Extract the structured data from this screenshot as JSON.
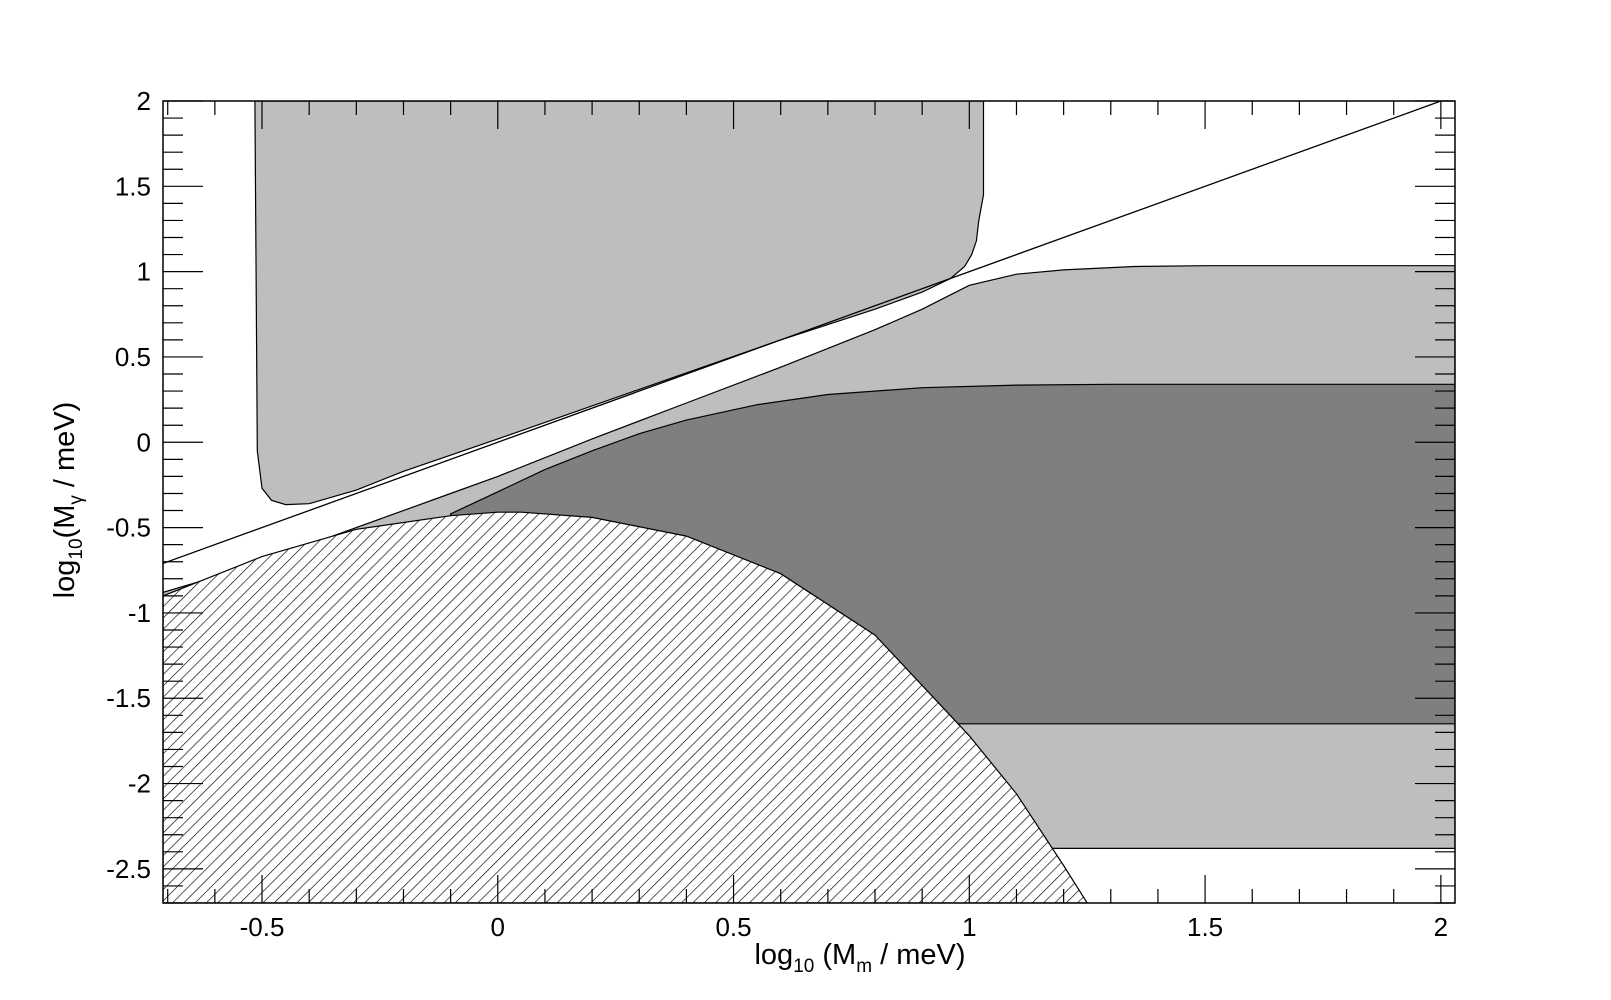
{
  "chart_data": {
    "type": "area",
    "title": "",
    "xlabel": {
      "base": "log",
      "sub": "10",
      "main": " (M",
      "sub2": "m",
      "tail": " / meV)"
    },
    "ylabel": {
      "base": "log",
      "sub": "10",
      "main": "(M",
      "sub2": "γ",
      "tail": " / meV)"
    },
    "xlim": [
      -0.71,
      2.03
    ],
    "ylim": [
      -2.7,
      2.0
    ],
    "x_ticks": [
      -0.5,
      0,
      0.5,
      1,
      1.5,
      2
    ],
    "x_tick_labels": [
      "-0.5",
      "0",
      "0.5",
      "1",
      "1.5",
      "2"
    ],
    "y_ticks": [
      -2.5,
      -2,
      -1.5,
      -1,
      -0.5,
      0,
      0.5,
      1,
      1.5,
      2
    ],
    "y_tick_labels": [
      "-2.5",
      "-2",
      "-1.5",
      "-1",
      "-0.5",
      "0",
      "0.5",
      "1",
      "1.5",
      "2"
    ],
    "grid": false,
    "colors": {
      "light_region": "#bebebe",
      "dark_region": "#7f7f7f",
      "line": "#000000",
      "hatch": "#000000"
    },
    "regions": [
      {
        "fill": "light",
        "x": [
          -0.515,
          -0.51,
          -0.5,
          -0.48,
          -0.45,
          -0.4,
          -0.3,
          -0.2,
          0.0,
          0.3,
          0.6,
          0.8,
          0.9,
          0.96,
          0.99,
          1.005,
          1.015,
          1.02,
          1.03,
          1.03
        ],
        "y": [
          2.0,
          -0.05,
          -0.27,
          -0.34,
          -0.365,
          -0.36,
          -0.28,
          -0.17,
          0.02,
          0.31,
          0.6,
          0.78,
          0.88,
          0.96,
          1.03,
          1.1,
          1.18,
          1.3,
          1.45,
          2.0
        ]
      },
      {
        "fill": "light",
        "x": [
          -0.71,
          -0.6,
          -0.5,
          -0.3,
          -0.1,
          0.0,
          0.2,
          0.4,
          0.6,
          0.8,
          0.9,
          1.0,
          1.1,
          1.2,
          1.35,
          1.5,
          2.03,
          2.03,
          -0.71
        ],
        "y": [
          -0.88,
          -0.79,
          -0.7,
          -0.5,
          -0.3,
          -0.2,
          0.02,
          0.23,
          0.44,
          0.66,
          0.78,
          0.92,
          0.985,
          1.01,
          1.03,
          1.035,
          1.035,
          -2.38,
          -2.38
        ]
      },
      {
        "fill": "dark",
        "x": [
          -0.1,
          0.0,
          0.1,
          0.2,
          0.3,
          0.4,
          0.55,
          0.7,
          0.9,
          1.1,
          1.3,
          2.03,
          2.03,
          -0.1
        ],
        "y": [
          -0.42,
          -0.29,
          -0.16,
          -0.05,
          0.05,
          0.13,
          0.22,
          0.28,
          0.32,
          0.335,
          0.34,
          0.34,
          -1.65,
          -1.65
        ]
      }
    ],
    "hatched_region": {
      "x": [
        -0.71,
        -0.5,
        -0.3,
        -0.1,
        0.0,
        0.05,
        0.2,
        0.4,
        0.6,
        0.8,
        1.0,
        1.1,
        1.2,
        1.25,
        -0.71
      ],
      "y": [
        -0.9,
        -0.67,
        -0.51,
        -0.43,
        -0.41,
        -0.41,
        -0.44,
        -0.55,
        -0.77,
        -1.13,
        -1.72,
        -2.06,
        -2.48,
        -2.7,
        -2.7
      ]
    },
    "lines": [
      {
        "x": [
          -0.71,
          2.0
        ],
        "y": [
          -0.71,
          2.0
        ]
      }
    ]
  }
}
